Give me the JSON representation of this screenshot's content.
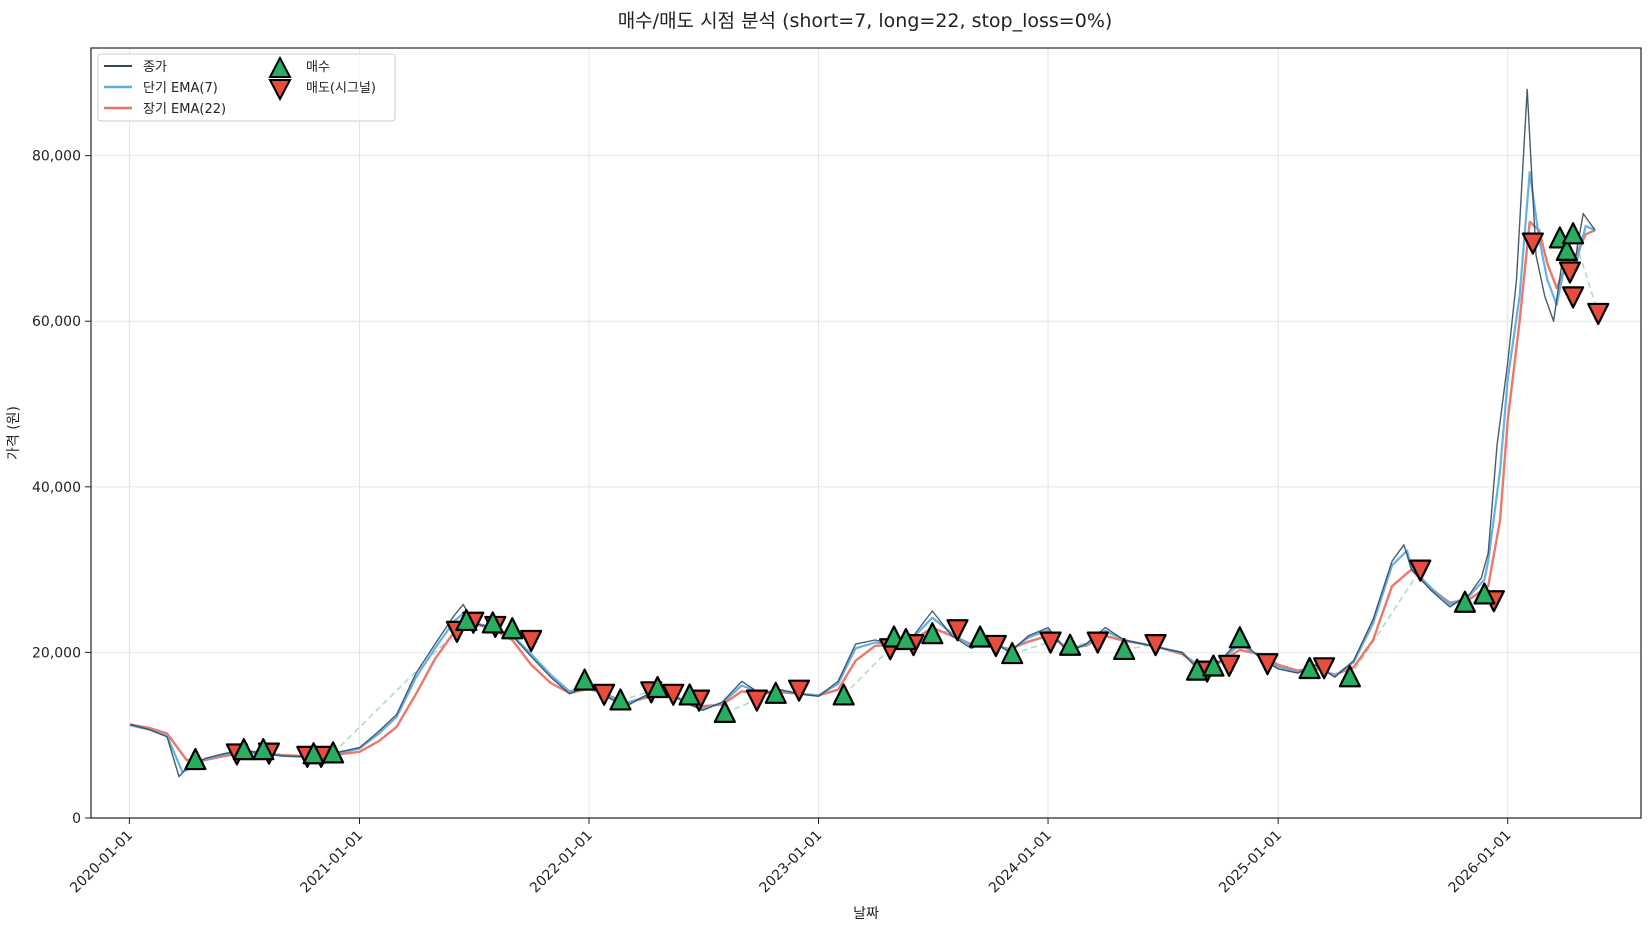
{
  "chart_data": {
    "type": "line",
    "title": "매수/매도 시점 분석 (short=7, long=22, stop_loss=0%)",
    "xlabel": "날짜",
    "ylabel": "가격 (원)",
    "xlim": [
      "2019-11-01",
      "2026-08-01"
    ],
    "ylim": [
      0,
      93000
    ],
    "x_ticks": [
      "2020-01-01",
      "2021-01-01",
      "2022-01-01",
      "2023-01-01",
      "2024-01-01",
      "2025-01-01",
      "2026-01-01"
    ],
    "y_ticks": [
      0,
      20000,
      40000,
      60000,
      80000
    ],
    "y_tick_labels": [
      "0",
      "20,000",
      "40,000",
      "60,000",
      "80,000"
    ],
    "grid": true,
    "legend_position": "top-left",
    "colors": {
      "close": "#34495e",
      "ema_short": "#5dade2",
      "ema_long": "#ec7063",
      "buy": "#27ae60",
      "sell": "#e74c3c",
      "trade_link": "#a9dfbf"
    },
    "series": [
      {
        "name": "종가",
        "x": [
          "2020-01-02",
          "2020-02-01",
          "2020-03-01",
          "2020-03-20",
          "2020-04-01",
          "2020-05-01",
          "2020-06-01",
          "2020-07-01",
          "2020-08-01",
          "2020-09-01",
          "2020-10-01",
          "2020-11-01",
          "2020-12-01",
          "2021-01-01",
          "2021-02-01",
          "2021-03-01",
          "2021-04-01",
          "2021-05-01",
          "2021-06-01",
          "2021-06-15",
          "2021-07-01",
          "2021-08-01",
          "2021-09-01",
          "2021-10-01",
          "2021-11-01",
          "2021-12-01",
          "2022-01-01",
          "2022-02-01",
          "2022-03-01",
          "2022-04-01",
          "2022-05-01",
          "2022-06-01",
          "2022-07-01",
          "2022-08-01",
          "2022-09-01",
          "2022-10-01",
          "2022-11-01",
          "2022-12-01",
          "2023-01-01",
          "2023-02-01",
          "2023-03-01",
          "2023-04-01",
          "2023-05-01",
          "2023-06-01",
          "2023-07-01",
          "2023-08-01",
          "2023-09-01",
          "2023-10-01",
          "2023-11-01",
          "2023-12-01",
          "2024-01-01",
          "2024-02-01",
          "2024-03-01",
          "2024-04-01",
          "2024-05-01",
          "2024-06-01",
          "2024-07-01",
          "2024-08-01",
          "2024-09-01",
          "2024-10-01",
          "2024-11-01",
          "2024-12-01",
          "2025-01-01",
          "2025-02-01",
          "2025-03-01",
          "2025-04-01",
          "2025-05-01",
          "2025-06-01",
          "2025-07-01",
          "2025-07-20",
          "2025-08-01",
          "2025-09-01",
          "2025-10-01",
          "2025-11-01",
          "2025-11-20",
          "2025-12-01",
          "2025-12-15",
          "2026-01-01",
          "2026-01-15",
          "2026-02-01",
          "2026-02-15",
          "2026-03-01",
          "2026-03-15",
          "2026-04-01",
          "2026-04-15",
          "2026-05-01",
          "2026-05-20"
        ],
        "values": [
          11300,
          10700,
          9800,
          5000,
          6000,
          7200,
          7800,
          8200,
          7800,
          7500,
          7400,
          7600,
          8000,
          8500,
          10500,
          12500,
          17500,
          21000,
          24500,
          25800,
          23500,
          23000,
          22000,
          19500,
          17000,
          15000,
          16000,
          14500,
          13500,
          14800,
          15500,
          14000,
          13000,
          14000,
          16500,
          15000,
          15500,
          15000,
          14700,
          16500,
          21000,
          21500,
          21000,
          22000,
          25000,
          22000,
          20500,
          21500,
          20000,
          22000,
          23000,
          20000,
          21000,
          23000,
          21500,
          21000,
          20500,
          20000,
          17500,
          19000,
          21500,
          19500,
          18000,
          17500,
          18500,
          17000,
          19000,
          24000,
          31000,
          33000,
          30000,
          27500,
          25500,
          27000,
          29000,
          32000,
          45000,
          55000,
          65000,
          88000,
          68000,
          63000,
          60000,
          69000,
          66000,
          73000,
          71000
        ]
      },
      {
        "name": "단기 EMA(7)",
        "x": [
          "2020-01-02",
          "2020-02-01",
          "2020-03-01",
          "2020-03-25",
          "2020-04-15",
          "2020-05-01",
          "2020-06-01",
          "2020-07-01",
          "2020-08-01",
          "2020-09-01",
          "2020-10-01",
          "2020-11-01",
          "2020-12-01",
          "2021-01-01",
          "2021-02-01",
          "2021-03-01",
          "2021-04-01",
          "2021-05-01",
          "2021-06-01",
          "2021-06-20",
          "2021-07-01",
          "2021-08-01",
          "2021-09-01",
          "2021-10-01",
          "2021-11-01",
          "2021-12-01",
          "2022-01-01",
          "2022-02-01",
          "2022-03-01",
          "2022-04-01",
          "2022-05-01",
          "2022-06-01",
          "2022-07-01",
          "2022-08-01",
          "2022-09-01",
          "2022-10-01",
          "2022-11-01",
          "2022-12-01",
          "2023-01-01",
          "2023-02-01",
          "2023-03-01",
          "2023-04-01",
          "2023-05-01",
          "2023-06-01",
          "2023-07-01",
          "2023-08-01",
          "2023-09-01",
          "2023-10-01",
          "2023-11-01",
          "2023-12-01",
          "2024-01-01",
          "2024-02-01",
          "2024-03-01",
          "2024-04-01",
          "2024-05-01",
          "2024-06-01",
          "2024-07-01",
          "2024-08-01",
          "2024-09-01",
          "2024-10-01",
          "2024-11-01",
          "2024-12-01",
          "2025-01-01",
          "2025-02-01",
          "2025-03-01",
          "2025-04-01",
          "2025-05-01",
          "2025-06-01",
          "2025-07-01",
          "2025-07-25",
          "2025-08-01",
          "2025-09-01",
          "2025-10-01",
          "2025-11-01",
          "2025-11-25",
          "2025-12-01",
          "2025-12-20",
          "2026-01-01",
          "2026-01-20",
          "2026-02-05",
          "2026-02-20",
          "2026-03-05",
          "2026-03-20",
          "2026-04-05",
          "2026-04-20",
          "2026-05-05",
          "2026-05-20"
        ],
        "values": [
          11200,
          10700,
          9900,
          5600,
          6200,
          7100,
          7700,
          8100,
          7800,
          7500,
          7400,
          7600,
          7900,
          8400,
          10200,
          12200,
          17000,
          20500,
          23800,
          25000,
          23600,
          23000,
          22100,
          19800,
          17300,
          15300,
          15800,
          14700,
          13800,
          14700,
          15300,
          14200,
          13200,
          13900,
          16000,
          15100,
          15400,
          15000,
          14800,
          16200,
          20500,
          21200,
          21000,
          21800,
          24200,
          22300,
          20800,
          21300,
          20200,
          21800,
          22700,
          20300,
          20900,
          22600,
          21500,
          21000,
          20500,
          20000,
          17800,
          18900,
          21000,
          19600,
          18200,
          17600,
          18300,
          17200,
          18800,
          23500,
          30500,
          32300,
          30200,
          27800,
          25800,
          26800,
          28800,
          31000,
          42000,
          53000,
          63000,
          78000,
          70000,
          65000,
          62000,
          68000,
          67000,
          71500,
          71000
        ]
      },
      {
        "name": "장기 EMA(22)",
        "x": [
          "2020-01-02",
          "2020-02-01",
          "2020-03-01",
          "2020-04-01",
          "2020-05-01",
          "2020-06-01",
          "2020-07-01",
          "2020-08-01",
          "2020-09-01",
          "2020-10-01",
          "2020-11-01",
          "2020-12-01",
          "2021-01-01",
          "2021-02-01",
          "2021-03-01",
          "2021-04-01",
          "2021-05-01",
          "2021-06-01",
          "2021-07-01",
          "2021-08-01",
          "2021-09-01",
          "2021-10-01",
          "2021-11-01",
          "2021-12-01",
          "2022-01-01",
          "2022-02-01",
          "2022-03-01",
          "2022-04-01",
          "2022-05-01",
          "2022-06-01",
          "2022-07-01",
          "2022-08-01",
          "2022-09-01",
          "2022-10-01",
          "2022-11-01",
          "2022-12-01",
          "2023-01-01",
          "2023-02-01",
          "2023-03-01",
          "2023-04-01",
          "2023-05-01",
          "2023-06-01",
          "2023-07-01",
          "2023-08-01",
          "2023-09-01",
          "2023-10-01",
          "2023-11-01",
          "2023-12-01",
          "2024-01-01",
          "2024-02-01",
          "2024-03-01",
          "2024-04-01",
          "2024-05-01",
          "2024-06-01",
          "2024-07-01",
          "2024-08-01",
          "2024-09-01",
          "2024-10-01",
          "2024-11-01",
          "2024-12-01",
          "2025-01-01",
          "2025-02-01",
          "2025-03-01",
          "2025-04-01",
          "2025-05-01",
          "2025-06-01",
          "2025-07-01",
          "2025-08-01",
          "2025-09-01",
          "2025-10-01",
          "2025-11-01",
          "2025-12-01",
          "2025-12-20",
          "2026-01-01",
          "2026-01-20",
          "2026-02-05",
          "2026-02-20",
          "2026-03-05",
          "2026-03-20",
          "2026-04-05",
          "2026-04-20",
          "2026-05-05",
          "2026-05-20"
        ],
        "values": [
          11300,
          10900,
          10200,
          7000,
          7000,
          7500,
          7900,
          7800,
          7600,
          7500,
          7500,
          7700,
          8000,
          9300,
          11000,
          15000,
          19200,
          22500,
          23500,
          22800,
          21500,
          18500,
          16300,
          15100,
          15600,
          14800,
          13900,
          14500,
          15000,
          14200,
          13500,
          13700,
          15300,
          15000,
          15200,
          15000,
          14800,
          15500,
          19000,
          20800,
          20900,
          21500,
          23000,
          22000,
          21000,
          21000,
          20400,
          21300,
          22000,
          20600,
          20800,
          22000,
          21400,
          21000,
          20500,
          19800,
          18200,
          18800,
          20300,
          19800,
          18500,
          17800,
          18100,
          17300,
          18200,
          21500,
          28000,
          30000,
          27700,
          26000,
          26400,
          28000,
          36000,
          48000,
          60000,
          72000,
          71000,
          67000,
          64000,
          67000,
          68000,
          70500,
          71000
        ]
      }
    ],
    "buy_signals": {
      "name": "매수",
      "points": [
        [
          "2020-04-15",
          7000
        ],
        [
          "2020-07-01",
          8200
        ],
        [
          "2020-08-01",
          8200
        ],
        [
          "2020-10-20",
          7700
        ],
        [
          "2020-11-20",
          7800
        ],
        [
          "2021-06-20",
          23800
        ],
        [
          "2021-08-01",
          23500
        ],
        [
          "2021-09-01",
          22800
        ],
        [
          "2021-12-25",
          16600
        ],
        [
          "2022-02-20",
          14200
        ],
        [
          "2022-04-20",
          15700
        ],
        [
          "2022-06-10",
          14800
        ],
        [
          "2022-08-05",
          12700
        ],
        [
          "2022-10-25",
          15000
        ],
        [
          "2023-02-10",
          14800
        ],
        [
          "2023-05-01",
          21800
        ],
        [
          "2023-05-20",
          21500
        ],
        [
          "2023-07-01",
          22200
        ],
        [
          "2023-09-15",
          21800
        ],
        [
          "2023-11-05",
          19800
        ],
        [
          "2024-02-05",
          20800
        ],
        [
          "2024-05-01",
          20300
        ],
        [
          "2024-08-25",
          17800
        ],
        [
          "2024-09-20",
          18300
        ],
        [
          "2024-11-01",
          21700
        ],
        [
          "2025-02-20",
          18000
        ],
        [
          "2025-04-25",
          17000
        ],
        [
          "2025-10-25",
          26000
        ],
        [
          "2025-11-25",
          27000
        ],
        [
          "2026-03-25",
          70000
        ],
        [
          "2026-04-05",
          68500
        ],
        [
          "2026-04-15",
          70500
        ]
      ]
    },
    "sell_signals": {
      "name": "매도(시그널)",
      "points": [
        [
          "2020-06-20",
          7800
        ],
        [
          "2020-08-10",
          7900
        ],
        [
          "2020-10-10",
          7500
        ],
        [
          "2020-11-01",
          7500
        ],
        [
          "2021-06-05",
          22600
        ],
        [
          "2021-07-01",
          23700
        ],
        [
          "2021-08-05",
          23200
        ],
        [
          "2021-10-01",
          21500
        ],
        [
          "2022-01-25",
          15000
        ],
        [
          "2022-04-10",
          15300
        ],
        [
          "2022-05-15",
          15000
        ],
        [
          "2022-06-25",
          14300
        ],
        [
          "2022-09-25",
          14300
        ],
        [
          "2022-12-01",
          15500
        ],
        [
          "2023-04-25",
          20500
        ],
        [
          "2023-06-01",
          21000
        ],
        [
          "2023-08-10",
          22800
        ],
        [
          "2023-10-10",
          20900
        ],
        [
          "2024-01-05",
          21300
        ],
        [
          "2024-03-20",
          21300
        ],
        [
          "2024-06-20",
          21000
        ],
        [
          "2024-09-10",
          17800
        ],
        [
          "2024-10-15",
          18500
        ],
        [
          "2024-12-15",
          18700
        ],
        [
          "2025-03-15",
          18200
        ],
        [
          "2025-08-15",
          30000
        ],
        [
          "2025-12-10",
          26300
        ],
        [
          "2026-02-10",
          69500
        ],
        [
          "2026-04-10",
          66000
        ],
        [
          "2026-04-15",
          63000
        ],
        [
          "2026-05-25",
          61000
        ]
      ]
    }
  }
}
